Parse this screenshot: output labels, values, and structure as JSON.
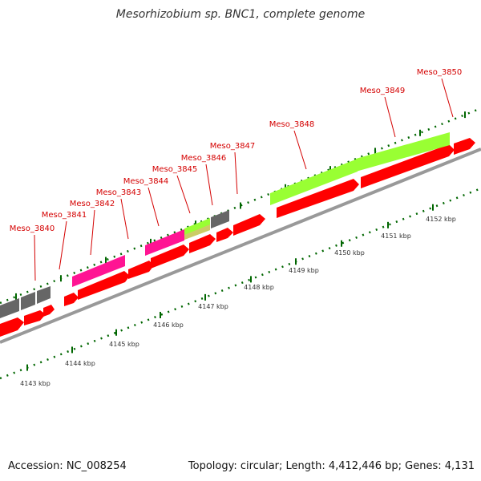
{
  "title": "Mesorhizobium sp. BNC1, complete genome",
  "footer": {
    "accession": "Accession: NC_008254",
    "summary": "Topology: circular; Length: 4,412,446 bp; Genes: 4,131"
  },
  "gene_labels": [
    "Meso_3840",
    "Meso_3841",
    "Meso_3842",
    "Meso_3843",
    "Meso_3844",
    "Meso_3845",
    "Meso_3846",
    "Meso_3847",
    "Meso_3848",
    "Meso_3849",
    "Meso_3850"
  ],
  "kbp_labels": [
    "4143 kbp",
    "4144 kbp",
    "4145 kbp",
    "4146 kbp",
    "4147 kbp",
    "4148 kbp",
    "4149 kbp",
    "4150 kbp",
    "4151 kbp",
    "4152 kbp"
  ],
  "colors": {
    "backbone": "#999999",
    "cds": "#ff0000",
    "pink": "#ff1493",
    "lime": "#99ff33",
    "olive": "#cccc66",
    "gray": "#666666",
    "tick": "#006600",
    "label": "#d40000"
  }
}
